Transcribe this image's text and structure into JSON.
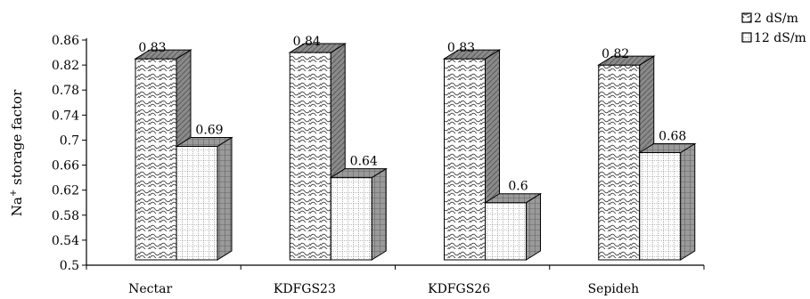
{
  "chart_data": {
    "type": "bar",
    "categories": [
      "Nectar",
      "KDFGS23",
      "KDFGS26",
      "Sepideh"
    ],
    "series": [
      {
        "name": "2 dS/m",
        "values": [
          0.83,
          0.84,
          0.83,
          0.82
        ],
        "labels": [
          "0.83",
          "0.84",
          "0.83",
          "0.82"
        ],
        "pattern": "wave"
      },
      {
        "name": "12 dS/m",
        "values": [
          0.69,
          0.64,
          0.6,
          0.68
        ],
        "labels": [
          "0.69",
          "0.64",
          "0.6",
          "0.68"
        ],
        "pattern": "grid"
      }
    ],
    "ylabel_main": "Na",
    "ylabel_sup": "+",
    "ylabel_rest": " storage factor",
    "ylim": [
      0.5,
      0.86
    ],
    "yticks": [
      "0.5",
      "0.54",
      "0.58",
      "0.62",
      "0.66",
      "0.7",
      "0.74",
      "0.78",
      "0.82",
      "0.86"
    ],
    "grid": false,
    "legend_position": "top-right",
    "three_d": true
  }
}
